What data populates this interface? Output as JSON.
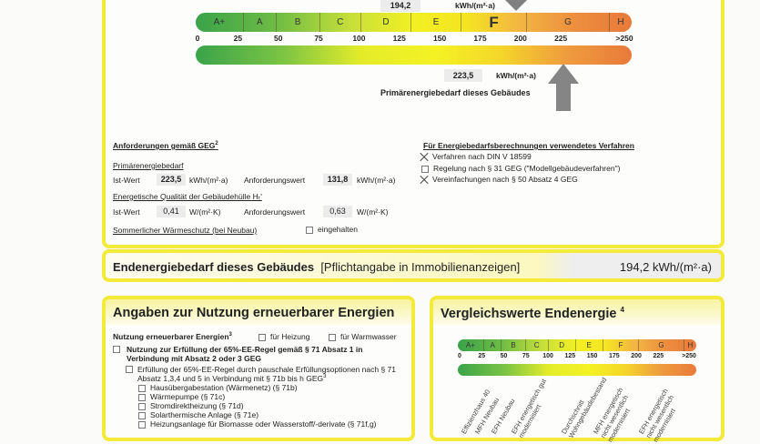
{
  "primary_scale": {
    "classes": [
      "A+",
      "A",
      "B",
      "C",
      "D",
      "E",
      "F",
      "G",
      "H"
    ],
    "active_class": "F",
    "ticks": [
      "0",
      "25",
      "50",
      "75",
      "100",
      "125",
      "150",
      "175",
      "200",
      "225",
      ">250"
    ],
    "end_energy_value": "194,2",
    "end_energy_unit": "kWh/(m²·a)",
    "primary_value": "223,5",
    "primary_unit": "kWh/(m²·a)",
    "primary_label": "Primärenergiebedarf dieses Gebäudes"
  },
  "requirements": {
    "title": "Anforderungen gemäß GEG",
    "title_sup": "2",
    "primary_heading": "Primärenergiebedarf",
    "ist_label": "Ist-Wert",
    "ist_primary": "223,5",
    "unit_primary": "kWh/(m²·a)",
    "anf_label": "Anforderungswert",
    "anf_primary": "131,8",
    "envelope_heading": "Energetische Qualität der Gebäudehülle Hₜ'",
    "ist_envelope": "0,41",
    "unit_envelope": "W/(m²·K)",
    "anf_envelope": "0,63",
    "summer_label": "Sommerlicher Wärmeschutz (bei Neubau)",
    "summer_check": "eingehalten",
    "summer_checked": false
  },
  "methods": {
    "title": "Für Energiebedarfsberechnungen verwendetes Verfahren",
    "items": [
      {
        "label": "Verfahren nach DIN V 18599",
        "checked": true
      },
      {
        "label": "Regelung nach § 31 GEG (\"Modellgebäudeverfahren\")",
        "checked": false
      },
      {
        "label": "Vereinfachungen nach § 50 Absatz 4 GEG",
        "checked": true
      }
    ]
  },
  "end_energy": {
    "label": "Endenergiebedarf dieses Gebäudes",
    "note": "[Pflichtangabe in Immobilienanzeigen]",
    "value": "194,2 kWh/(m²·a)"
  },
  "renewables": {
    "title": "Angaben zur Nutzung erneuerbarer Energien",
    "usage_label": "Nutzung erneuerbarer Energien",
    "usage_sup": "3",
    "heating": "für Heizung",
    "hot_water": "für Warmwasser",
    "rule65": "Nutzung zur Erfüllung der 65%-EE-Regel gemäß § 71 Absatz 1 in Verbindung mit Absatz 2 oder 3 GEG",
    "flat_rate": "Erfüllung der 65%-EE-Regel durch pauschale Erfüllungsoptionen nach § 71 Absatz 1,3,4 und 5 in Verbindung mit § 71b bis h GEG",
    "flat_rate_sup": "3",
    "options": [
      "Hausübergabestation (Wärmenetz) (§ 71b)",
      "Wärmepumpe (§ 71c)",
      "Stromdirektheizung (§ 71d)",
      "Solarthermische Anlage (§ 71e)",
      "Heizungsanlage für Biomasse oder Wasserstoff/-derivate (§ 71f,g)"
    ]
  },
  "comparison": {
    "title": "Vergleichswerte Endenergie",
    "title_sup": "4",
    "classes": [
      "A+",
      "A",
      "B",
      "C",
      "D",
      "E",
      "F",
      "G",
      "H"
    ],
    "ticks": [
      "0",
      "25",
      "50",
      "75",
      "100",
      "125",
      "150",
      "175",
      "200",
      "225",
      ">250"
    ],
    "labels": [
      "Effizienzhaus 40",
      "MFH Neubau",
      "EFH Neubau",
      "EFH energetisch gut modernisiert",
      "Durchschnitt Wohngebäudebestand",
      "MFH energetisch nicht wesentlich modernisiert",
      "EFH energetisch nicht wesentlich modernisiert"
    ]
  }
}
